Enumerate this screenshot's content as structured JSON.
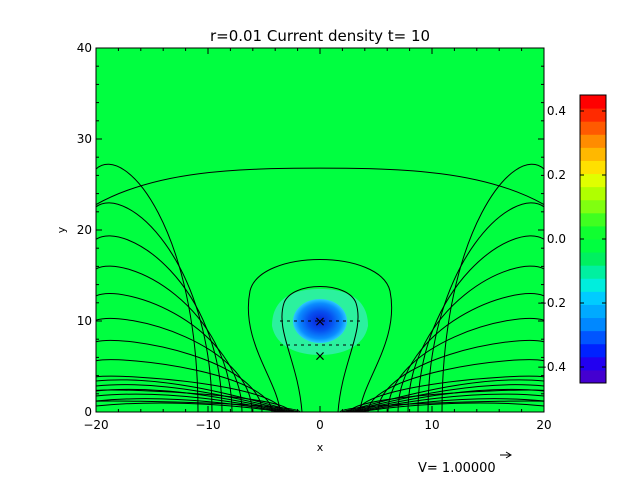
{
  "chart_data": {
    "type": "heatmap",
    "title": "r=0.01 Current density t= 10",
    "xlabel": "x",
    "ylabel": "y",
    "xlim": [
      -20,
      20
    ],
    "ylim": [
      0,
      40
    ],
    "x_ticks": [
      "−20",
      "−10",
      "0",
      "10",
      "20"
    ],
    "x_tick_values": [
      -20,
      -10,
      0,
      10,
      20
    ],
    "y_ticks": [
      "0",
      "10",
      "20",
      "30",
      "40"
    ],
    "y_tick_values": [
      0,
      10,
      20,
      30,
      40
    ],
    "background_value": 0.0,
    "current_blob": {
      "x": 0,
      "y": 10,
      "min_value": -0.45
    },
    "halo": {
      "x": 0,
      "y": 10,
      "value": -0.1
    },
    "markers": [
      {
        "symbol": "×",
        "x": 0,
        "y": 10
      },
      {
        "symbol": "×",
        "x": 0,
        "y": 6.2
      }
    ],
    "colorbar": {
      "min": -0.45,
      "max": 0.45,
      "tick_labels": [
        "0.4",
        "0.2",
        "0.0",
        "−0.2",
        "−0.4"
      ],
      "tick_values": [
        0.4,
        0.2,
        0.0,
        -0.2,
        -0.4
      ],
      "colors": [
        "#4400d0",
        "#2200f0",
        "#0022ff",
        "#0055ff",
        "#0088ff",
        "#00aaff",
        "#00ccff",
        "#00eedd",
        "#00f0a0",
        "#00f060",
        "#00ff40",
        "#10ff30",
        "#40ff20",
        "#80ff10",
        "#b0ff00",
        "#e0ff00",
        "#ffe000",
        "#ffb800",
        "#ff8c00",
        "#ff5a00",
        "#ff2a00",
        "#ff0000"
      ]
    },
    "vector_label": "V= 1.00000",
    "colors": {
      "field": "#00ff40",
      "blob": "#0066ff",
      "blob_core": "#1030e0",
      "halo": "#30f0a8",
      "line": "#000000"
    }
  }
}
